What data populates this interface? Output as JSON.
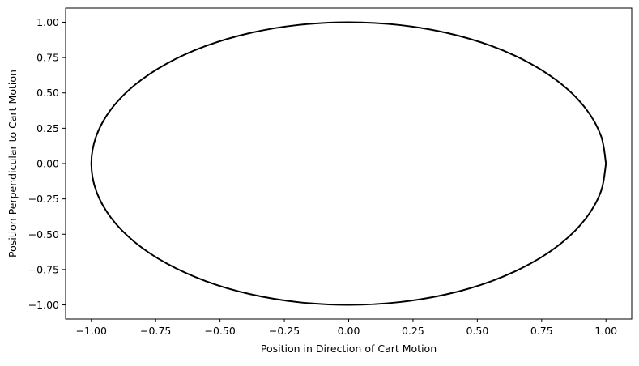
{
  "chart_data": {
    "type": "line",
    "title": "",
    "xlabel": "Position in Direction of Cart Motion",
    "ylabel": "Position Perpendicular to Cart Motion",
    "xlim": [
      -1.1,
      1.1
    ],
    "ylim": [
      -1.1,
      1.1
    ],
    "x_ticks": [
      -1.0,
      -0.75,
      -0.5,
      -0.25,
      0.0,
      0.25,
      0.5,
      0.75,
      1.0
    ],
    "x_tick_labels": [
      "−1.00",
      "−0.75",
      "−0.50",
      "−0.25",
      "0.00",
      "0.25",
      "0.50",
      "0.75",
      "1.00"
    ],
    "y_ticks": [
      -1.0,
      -0.75,
      -0.5,
      -0.25,
      0.0,
      0.25,
      0.5,
      0.75,
      1.0
    ],
    "y_tick_labels": [
      "−1.00",
      "−0.75",
      "−0.50",
      "−0.25",
      "0.00",
      "0.25",
      "0.50",
      "0.75",
      "1.00"
    ],
    "grid": false,
    "series": [
      {
        "color": "#000000",
        "x": [
          1.0,
          0.9808,
          0.9239,
          0.8315,
          0.7071,
          0.5556,
          0.3827,
          0.1951,
          0.0,
          -0.1951,
          -0.3827,
          -0.5556,
          -0.7071,
          -0.8315,
          -0.9239,
          -0.9808,
          -1.0,
          -0.9808,
          -0.9239,
          -0.8315,
          -0.7071,
          -0.5556,
          -0.3827,
          -0.1951,
          0.0,
          0.1951,
          0.3827,
          0.5556,
          0.7071,
          0.8315,
          0.9239,
          0.9808,
          1.0
        ],
        "y": [
          0.0,
          0.1951,
          0.3827,
          0.5556,
          0.7071,
          0.8315,
          0.9239,
          0.9808,
          1.0,
          0.9808,
          0.9239,
          0.8315,
          0.7071,
          0.5556,
          0.3827,
          0.1951,
          0.0,
          -0.1951,
          -0.3827,
          -0.5556,
          -0.7071,
          -0.8315,
          -0.9239,
          -0.9808,
          -1.0,
          -0.9808,
          -0.9239,
          -0.8315,
          -0.7071,
          -0.5556,
          -0.3827,
          -0.1951,
          0.0
        ]
      }
    ]
  }
}
